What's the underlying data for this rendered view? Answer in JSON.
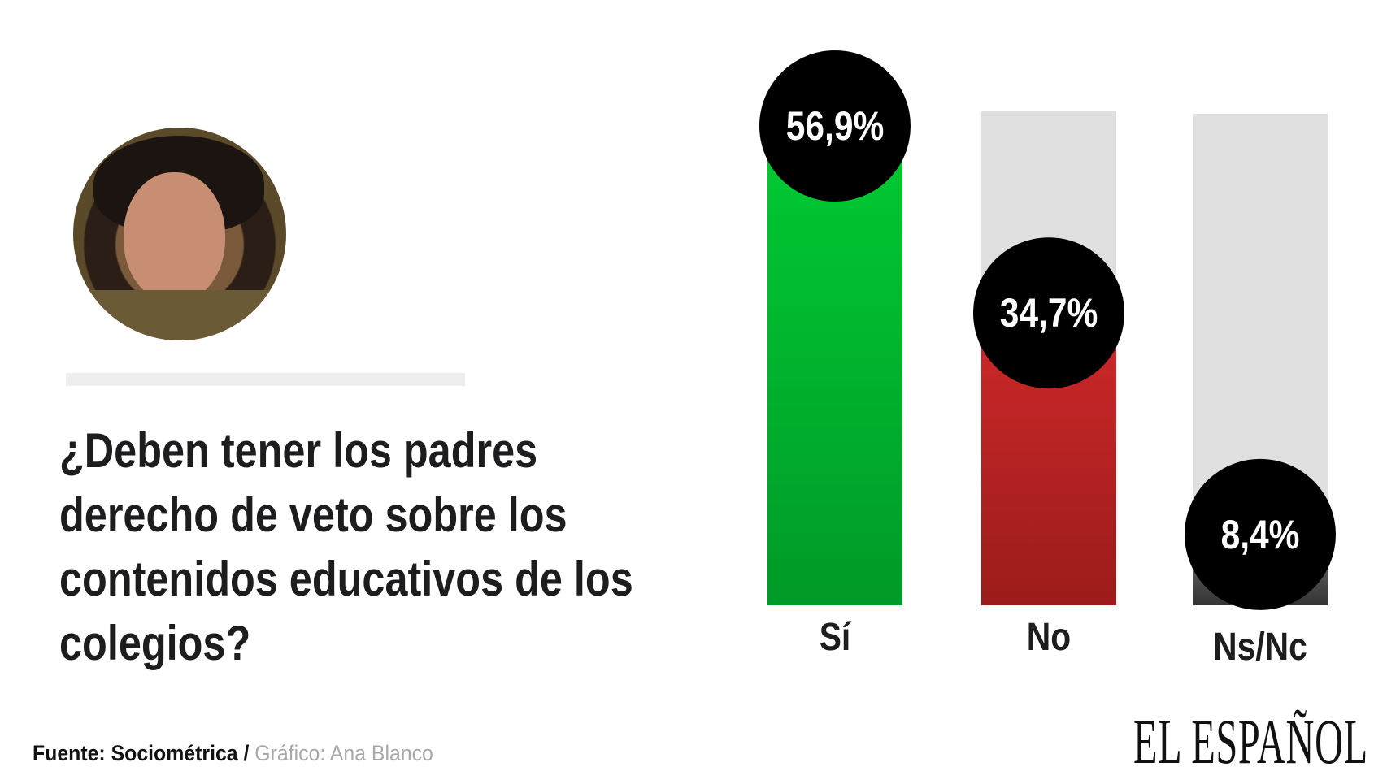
{
  "chart_data": {
    "type": "bar",
    "title": "¿Deben tener los padres derecho de veto sobre los contenidos educativos de los colegios?",
    "categories": [
      "Sí",
      "No",
      "Ns/Nc"
    ],
    "values": [
      56.9,
      34.7,
      8.4
    ],
    "value_labels": [
      "56,9%",
      "34,7%",
      "8,4%"
    ],
    "colors": [
      [
        "#00cc33",
        "#009a28"
      ],
      [
        "#d0282a",
        "#9a1c1a"
      ],
      [
        "#777777",
        "#333333"
      ]
    ],
    "track_color": "#e0e0e0",
    "grid": false
  },
  "question_lines": [
    "¿Deben tener los padres",
    "derecho de veto sobre los",
    "contenidos educativos de los",
    "colegios?"
  ],
  "footer": {
    "source": "Fuente: Sociométrica",
    "separator": " / ",
    "credit": "Gráfico: Ana Blanco"
  },
  "logo": "EL ESPAÑOL"
}
